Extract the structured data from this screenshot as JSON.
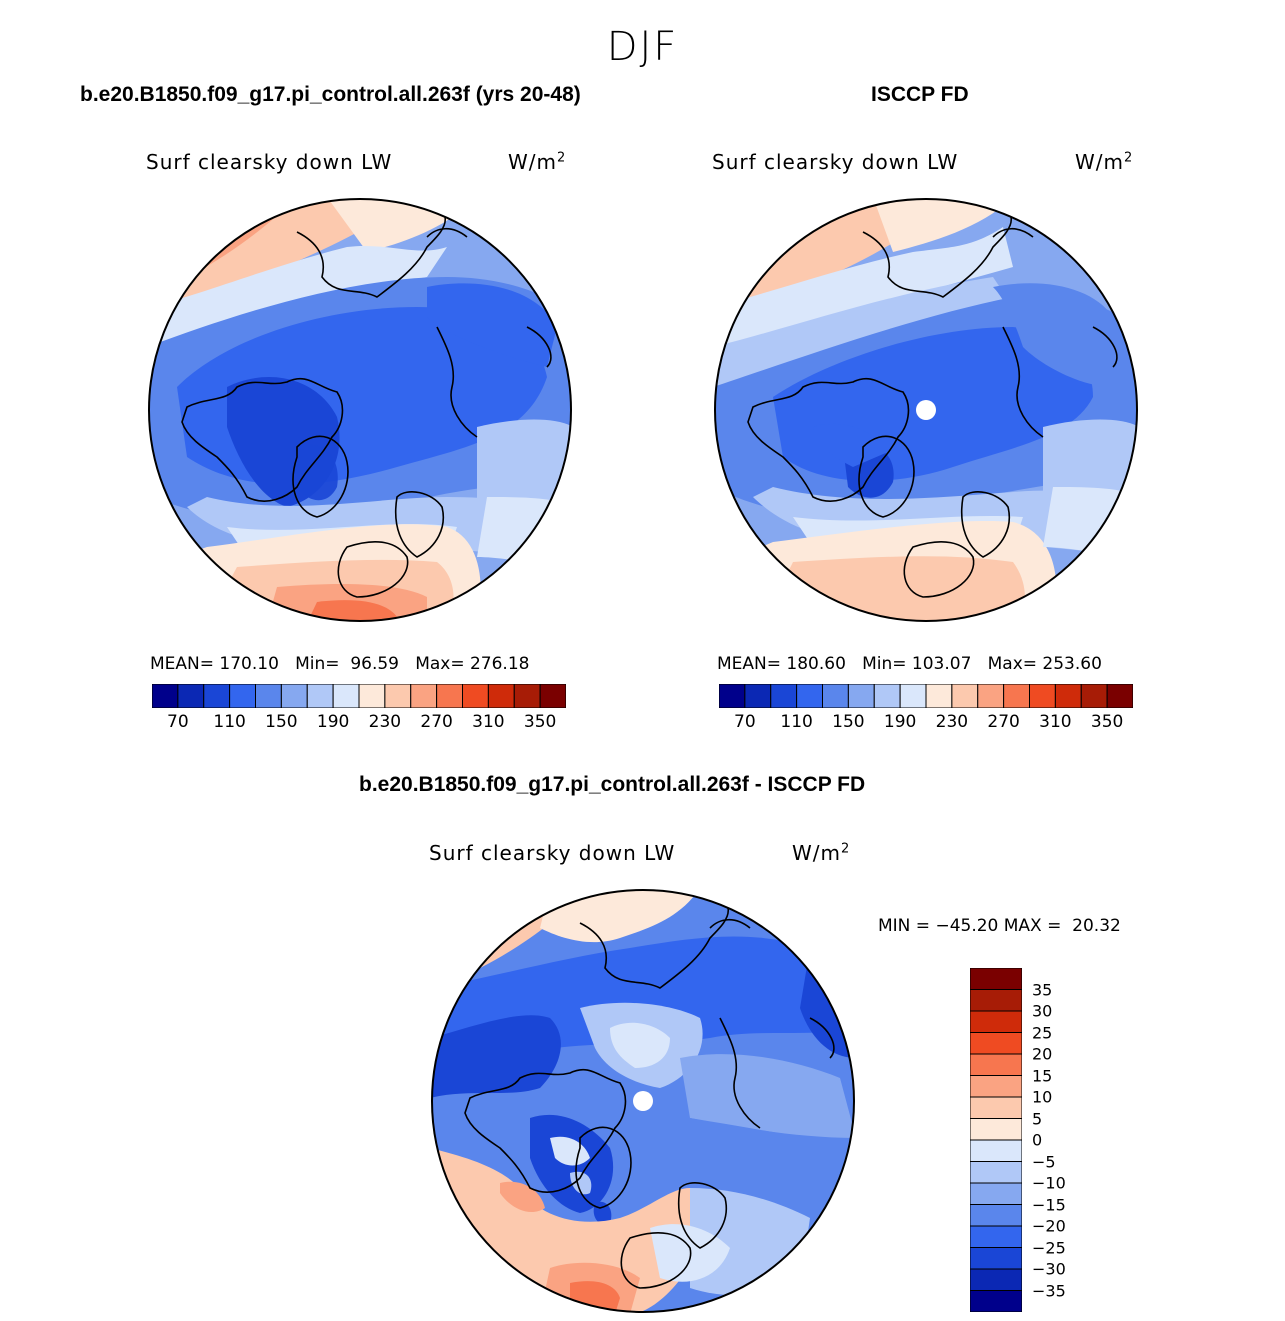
{
  "figure": {
    "season": "DJF"
  },
  "panels": [
    {
      "title": "b.e20.B1850.f09_g17.pi_control.all.263f (yrs 20-48)",
      "variable": "Surf clearsky down LW",
      "units_base": "W/m",
      "units_exp": "2",
      "stats": "MEAN= 170.10   Min=  96.59   Max= 276.18"
    },
    {
      "title": "ISCCP FD",
      "variable": "Surf clearsky down LW",
      "units_base": "W/m",
      "units_exp": "2",
      "stats": "MEAN= 180.60   Min= 103.07   Max= 253.60"
    },
    {
      "title": "b.e20.B1850.f09_g17.pi_control.all.263f - ISCCP FD",
      "variable": "Surf clearsky down LW",
      "units_base": "W/m",
      "units_exp": "2",
      "stats": "MIN = −45.20 MAX =  20.32"
    }
  ],
  "colorbar_abs": {
    "colors": [
      "#00008b",
      "#0b28b4",
      "#1a46d6",
      "#3366ee",
      "#5a86ec",
      "#86a8f0",
      "#b0c8f7",
      "#dae7fb",
      "#fde9da",
      "#fcc9ae",
      "#faa382",
      "#f7764f",
      "#ef4b22",
      "#cf2b0a",
      "#a71c06",
      "#7a0000"
    ],
    "tick_labels": [
      "70",
      "110",
      "150",
      "190",
      "230",
      "270",
      "310",
      "350"
    ]
  },
  "colorbar_diff": {
    "colors": [
      "#00008b",
      "#0b28b4",
      "#1a46d6",
      "#3366ee",
      "#5a86ec",
      "#86a8f0",
      "#b0c8f7",
      "#dae7fb",
      "#fde9da",
      "#fcc9ae",
      "#faa382",
      "#f7764f",
      "#ef4b22",
      "#cf2b0a",
      "#a71c06",
      "#7a0000"
    ],
    "tick_labels": [
      "35",
      "30",
      "25",
      "20",
      "15",
      "10",
      "5",
      "0",
      "−5",
      "−10",
      "−15",
      "−20",
      "−25",
      "−30",
      "−35"
    ]
  },
  "map_colors": {
    "deep": "#1a46d6",
    "mid": "#3366ee",
    "light": "#5a86ec",
    "pale": "#86a8f0",
    "paler": "#b0c8f7",
    "palest": "#dae7fb",
    "warm1": "#fde9da",
    "warm2": "#fcc9ae",
    "warm3": "#faa382",
    "warm4": "#f7764f",
    "warm5": "#ef4b22"
  }
}
